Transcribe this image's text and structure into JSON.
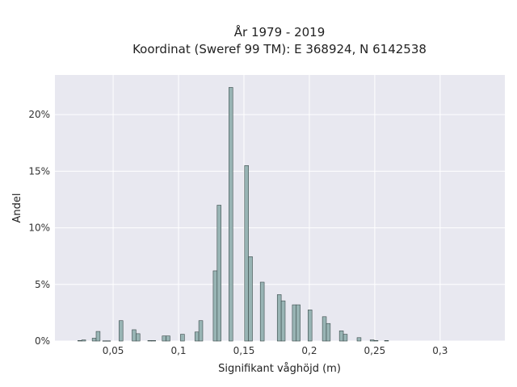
{
  "chart_data": {
    "type": "bar",
    "title_lines": [
      "År 1979 - 2019",
      "Koordinat (Sweref 99 TM): E 368924, N 6142538"
    ],
    "xlabel": "Signifikant våghöjd (m)",
    "ylabel": "Andel",
    "xlim": [
      0.0055,
      0.3495
    ],
    "ylim": [
      0,
      0.235
    ],
    "x_ticks": [
      0.05,
      0.1,
      0.15,
      0.2,
      0.25,
      0.3
    ],
    "x_tick_labels": [
      "0,05",
      "0,1",
      "0,15",
      "0,2",
      "0,25",
      "0,3"
    ],
    "y_ticks": [
      0,
      0.05,
      0.1,
      0.15,
      0.2
    ],
    "y_tick_labels": [
      "0%",
      "5%",
      "10%",
      "15%",
      "20%"
    ],
    "bin_width": 0.003,
    "bar_color": "#98b4b4",
    "bar_edge_color": "#3a4a4a",
    "background_color": "#e8e8f0",
    "grid_color": "#ffffff",
    "bars": [
      {
        "x": 0.0245,
        "value": 0.0005
      },
      {
        "x": 0.0275,
        "value": 0.001
      },
      {
        "x": 0.0355,
        "value": 0.0025
      },
      {
        "x": 0.0385,
        "value": 0.0085
      },
      {
        "x": 0.0435,
        "value": 0.0002
      },
      {
        "x": 0.0465,
        "value": 0.0002
      },
      {
        "x": 0.056,
        "value": 0.018
      },
      {
        "x": 0.066,
        "value": 0.01
      },
      {
        "x": 0.069,
        "value": 0.0065
      },
      {
        "x": 0.078,
        "value": 0.0005
      },
      {
        "x": 0.081,
        "value": 0.0005
      },
      {
        "x": 0.089,
        "value": 0.0045
      },
      {
        "x": 0.092,
        "value": 0.0045
      },
      {
        "x": 0.103,
        "value": 0.006
      },
      {
        "x": 0.114,
        "value": 0.008
      },
      {
        "x": 0.117,
        "value": 0.018
      },
      {
        "x": 0.128,
        "value": 0.062
      },
      {
        "x": 0.131,
        "value": 0.12
      },
      {
        "x": 0.14,
        "value": 0.224
      },
      {
        "x": 0.152,
        "value": 0.155
      },
      {
        "x": 0.155,
        "value": 0.0745
      },
      {
        "x": 0.164,
        "value": 0.052
      },
      {
        "x": 0.177,
        "value": 0.041
      },
      {
        "x": 0.18,
        "value": 0.0355
      },
      {
        "x": 0.1885,
        "value": 0.032
      },
      {
        "x": 0.1915,
        "value": 0.032
      },
      {
        "x": 0.2005,
        "value": 0.0275
      },
      {
        "x": 0.2115,
        "value": 0.0215
      },
      {
        "x": 0.2145,
        "value": 0.0155
      },
      {
        "x": 0.2245,
        "value": 0.009
      },
      {
        "x": 0.2275,
        "value": 0.006
      },
      {
        "x": 0.238,
        "value": 0.003
      },
      {
        "x": 0.248,
        "value": 0.001
      },
      {
        "x": 0.251,
        "value": 0.0005
      },
      {
        "x": 0.259,
        "value": 0.0005
      }
    ]
  }
}
